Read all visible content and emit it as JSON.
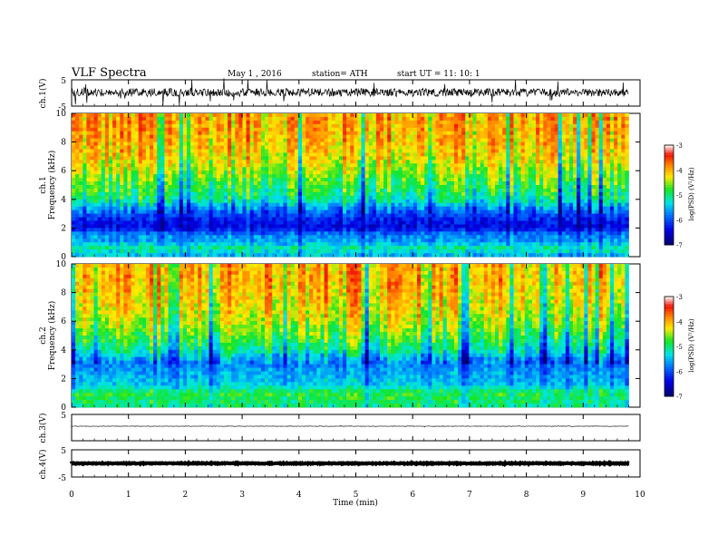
{
  "header": {
    "title": "VLF  Spectra",
    "date": "May 1  , 2016",
    "station": "station= ATH",
    "start": "start  UT  =    11: 10: 1"
  },
  "chart_data": [
    {
      "type": "line",
      "name": "ch1-waveform",
      "ylabel": "ch.1(V)",
      "y_ticks": [
        "5",
        "-5"
      ],
      "ylim": [
        -5,
        5
      ],
      "xlim": [
        0,
        10
      ],
      "description_level": "noisy broadband waveform around 0 V, amplitude roughly ±2 V"
    },
    {
      "type": "heatmap",
      "name": "ch1-spectrogram",
      "ylabel": "ch.1\nFrequency  (kHz)",
      "y_ticks": [
        "0",
        "2",
        "4",
        "6",
        "8",
        "10"
      ],
      "ylim": [
        0,
        10
      ],
      "xlim": [
        0,
        9.8
      ],
      "colorbar": {
        "label": "log(PSD) (V²/Hz)",
        "ticks": [
          "-3",
          "-4",
          "-5",
          "-6",
          "-7"
        ],
        "range": [
          -7,
          -3
        ]
      },
      "frequency_profile": [
        {
          "f": 0.2,
          "logpsd": -5.4
        },
        {
          "f": 0.6,
          "logpsd": -5.1
        },
        {
          "f": 1.0,
          "logpsd": -5.6
        },
        {
          "f": 1.5,
          "logpsd": -5.7
        },
        {
          "f": 2.0,
          "logpsd": -6.4
        },
        {
          "f": 2.5,
          "logpsd": -6.3
        },
        {
          "f": 3.0,
          "logpsd": -6.0
        },
        {
          "f": 3.5,
          "logpsd": -5.6
        },
        {
          "f": 4.0,
          "logpsd": -5.1
        },
        {
          "f": 5.0,
          "logpsd": -4.8
        },
        {
          "f": 6.0,
          "logpsd": -4.5
        },
        {
          "f": 7.0,
          "logpsd": -4.2
        },
        {
          "f": 8.0,
          "logpsd": -4.05
        },
        {
          "f": 9.0,
          "logpsd": -3.95
        },
        {
          "f": 10.0,
          "logpsd": -3.95
        }
      ]
    },
    {
      "type": "heatmap",
      "name": "ch2-spectrogram",
      "ylabel": "ch.2\nFrequency  (kHz)",
      "y_ticks": [
        "0",
        "2",
        "4",
        "6",
        "8",
        "10"
      ],
      "ylim": [
        0,
        10
      ],
      "xlim": [
        0,
        9.8
      ],
      "colorbar": {
        "label": "log(PSD) (V²/Hz)",
        "ticks": [
          "-3",
          "-4",
          "-5",
          "-6",
          "-7"
        ],
        "range": [
          -7,
          -3
        ]
      },
      "frequency_profile": [
        {
          "f": 0.2,
          "logpsd": -5.0
        },
        {
          "f": 0.6,
          "logpsd": -4.9
        },
        {
          "f": 1.0,
          "logpsd": -4.8
        },
        {
          "f": 1.5,
          "logpsd": -5.4
        },
        {
          "f": 2.0,
          "logpsd": -5.5
        },
        {
          "f": 2.5,
          "logpsd": -5.6
        },
        {
          "f": 3.0,
          "logpsd": -5.8
        },
        {
          "f": 3.5,
          "logpsd": -5.5
        },
        {
          "f": 4.0,
          "logpsd": -5.1
        },
        {
          "f": 5.0,
          "logpsd": -4.7
        },
        {
          "f": 6.0,
          "logpsd": -4.4
        },
        {
          "f": 7.0,
          "logpsd": -4.2
        },
        {
          "f": 8.0,
          "logpsd": -4.1
        },
        {
          "f": 9.0,
          "logpsd": -4.0
        },
        {
          "f": 10.0,
          "logpsd": -4.0
        }
      ]
    },
    {
      "type": "line",
      "name": "ch3-waveform",
      "ylabel": "ch.3(V)",
      "y_ticks": [
        "5",
        "-5"
      ],
      "ylim": [
        -5,
        5
      ],
      "xlim": [
        0,
        10
      ],
      "description_level": "flat near 0 V"
    },
    {
      "type": "line",
      "name": "ch4-waveform",
      "ylabel": "ch.4(V)",
      "y_ticks": [
        "5",
        "-5"
      ],
      "ylim": [
        -5,
        5
      ],
      "xlim": [
        0,
        10
      ],
      "description_level": "thick flat trace near 0 V"
    }
  ],
  "x_axis": {
    "label": "Time  (min)",
    "ticks": [
      "0",
      "1",
      "2",
      "3",
      "4",
      "5",
      "6",
      "7",
      "8",
      "9",
      "10"
    ],
    "range": [
      0,
      10
    ]
  }
}
